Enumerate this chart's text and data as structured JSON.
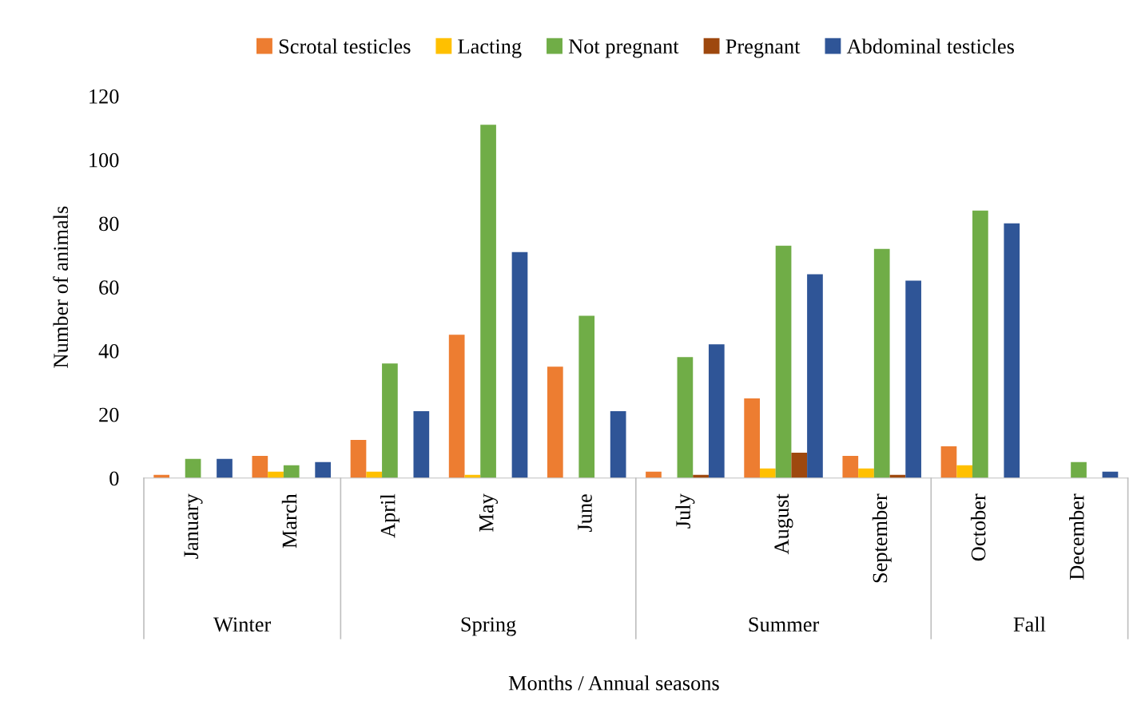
{
  "chart_data": {
    "type": "bar",
    "xlabel": "Months / Annual seasons",
    "ylabel": "Number of animals",
    "categories": [
      "January",
      "March",
      "April",
      "May",
      "June",
      "July",
      "August",
      "September",
      "October",
      "December"
    ],
    "series": [
      {
        "name": "Scrotal testicles",
        "color": "#ed7d31",
        "values": [
          1,
          7,
          12,
          45,
          35,
          2,
          25,
          7,
          10,
          0
        ]
      },
      {
        "name": "Lacting",
        "color": "#ffc000",
        "values": [
          0,
          2,
          2,
          1,
          0,
          0,
          3,
          3,
          4,
          0
        ]
      },
      {
        "name": "Not pregnant",
        "color": "#70ad47",
        "values": [
          6,
          4,
          36,
          111,
          51,
          38,
          73,
          72,
          84,
          5
        ]
      },
      {
        "name": "Pregnant",
        "color": "#9e480e",
        "values": [
          0,
          0,
          0,
          0,
          0,
          1,
          8,
          1,
          0,
          0
        ]
      },
      {
        "name": "Abdominal testicles",
        "color": "#2f5597",
        "values": [
          6,
          5,
          21,
          71,
          21,
          42,
          64,
          62,
          80,
          2
        ]
      }
    ],
    "ylim": [
      0,
      120
    ],
    "yticks": [
      0,
      20,
      40,
      60,
      80,
      100,
      120
    ],
    "grid": false,
    "legend": "top",
    "annotations": [
      "Winter",
      "Spring",
      "Summer",
      "Fall"
    ]
  }
}
